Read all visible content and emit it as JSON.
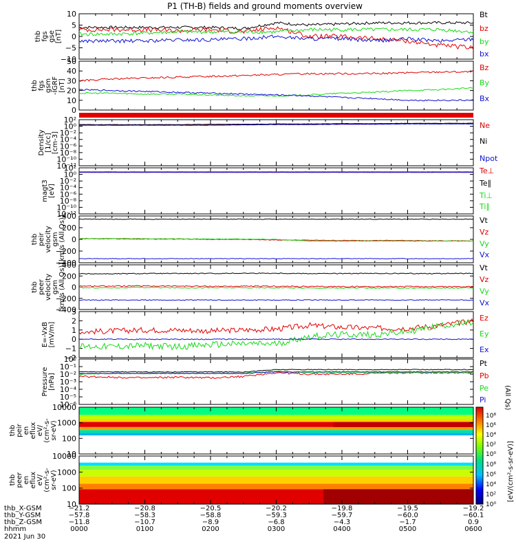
{
  "title": "P1 (TH-B) fields and ground moments overview",
  "colors": {
    "black": "#000000",
    "red": "#e00000",
    "green": "#18d818",
    "blue": "#1010d0"
  },
  "chart_data": {
    "type": "line",
    "x_ticks": [
      "0000",
      "0100",
      "0200",
      "0300",
      "0400",
      "0500",
      "0600"
    ],
    "panels": [
      {
        "id": "fgs",
        "ylabel": [
          "thb",
          "fgs",
          "gse",
          "[nT]"
        ],
        "yticks": [
          "10",
          "5",
          "0",
          "−5",
          "−10"
        ],
        "ylim": [
          -10,
          10
        ],
        "legend": [
          {
            "label": "Bt",
            "color": "black"
          },
          {
            "label": "bz",
            "color": "red"
          },
          {
            "label": "by",
            "color": "green"
          },
          {
            "label": "bx",
            "color": "blue"
          }
        ],
        "series": [
          {
            "name": "Bt",
            "color": "black",
            "values": [
              4,
              4,
              4,
              4,
              4,
              3.5,
              6,
              5,
              5.5,
              6,
              6,
              6,
              6
            ],
            "noise": 0.6
          },
          {
            "name": "bz",
            "color": "red",
            "values": [
              3,
              3,
              3,
              2.5,
              3,
              2,
              4,
              0,
              0,
              -1,
              -2,
              -4,
              -5
            ],
            "noise": 1.0
          },
          {
            "name": "by",
            "color": "green",
            "values": [
              1,
              1,
              1.5,
              2,
              2,
              2,
              2,
              3,
              3,
              3,
              3,
              3,
              2
            ],
            "noise": 0.8
          },
          {
            "name": "bx",
            "color": "blue",
            "values": [
              -2,
              -2,
              -2,
              -1.5,
              -1.5,
              -1,
              0,
              -1,
              -1,
              -2,
              -1,
              -2,
              -1
            ],
            "noise": 0.8
          }
        ]
      },
      {
        "id": "fgm",
        "ylabel": [
          "thb",
          "fgs",
          "gsm",
          "-IGRF",
          "[nT]"
        ],
        "yticks": [
          "50",
          "40",
          "30",
          "20",
          "10",
          "0"
        ],
        "ylim": [
          -5,
          50
        ],
        "legend": [
          {
            "label": "Bz",
            "color": "red"
          },
          {
            "label": "By",
            "color": "green"
          },
          {
            "label": "Bx",
            "color": "blue"
          }
        ],
        "series": [
          {
            "name": "Bz",
            "color": "red",
            "values": [
              28,
              30,
              31,
              32,
              33,
              34,
              35,
              36,
              36,
              36,
              37,
              38,
              38
            ],
            "noise": 1.0
          },
          {
            "name": "By",
            "color": "green",
            "values": [
              14,
              14,
              13,
              13,
              12,
              11,
              11,
              12,
              14,
              15,
              17,
              18,
              20
            ],
            "noise": 0.8
          },
          {
            "name": "Bx",
            "color": "blue",
            "values": [
              18,
              17,
              16,
              15,
              14,
              13,
              12,
              11,
              9,
              8,
              6,
              6,
              6
            ],
            "noise": 0.8
          }
        ]
      },
      {
        "id": "density",
        "ylabel": [
          "Density",
          "[1/cc]",
          "[cm-3]"
        ],
        "yticks": [
          "10²",
          "10⁰",
          "10⁻²",
          "10⁻⁴",
          "10⁻⁶",
          "10⁻⁸",
          "10⁻¹⁰",
          "10⁻¹²"
        ],
        "ylim": [
          -12,
          2
        ],
        "log": true,
        "legend": [
          {
            "label": "Ne",
            "color": "red"
          },
          {
            "label": "Ni",
            "color": "black"
          },
          {
            "label": "Npot",
            "color": "blue"
          }
        ],
        "series": [
          {
            "name": "Ne",
            "color": "red",
            "values": [
              0.4,
              0.4,
              0.4,
              0.4,
              0.4,
              0.5,
              0.6,
              0.6,
              0.7,
              0.7,
              0.8,
              0.8,
              0.8
            ],
            "noise": 0.05
          },
          {
            "name": "Ni",
            "color": "black",
            "values": [
              0.5,
              0.5,
              0.5,
              0.5,
              0.6,
              0.6,
              0.7,
              0.7,
              0.8,
              0.8,
              0.9,
              0.9,
              0.9
            ],
            "noise": 0.05
          },
          {
            "name": "Npot",
            "color": "blue",
            "values": [
              0.3,
              0.3,
              0.3,
              0.3,
              0.3,
              0.4,
              0.5,
              0.5,
              0.6,
              0.6,
              0.7,
              0.7,
              0.7
            ],
            "noise": 0.05
          }
        ]
      },
      {
        "id": "temp",
        "ylabel": [
          "magt3",
          "[eV]"
        ],
        "yticks": [
          "10²",
          "10⁰",
          "10⁻²",
          "10⁻⁴",
          "10⁻⁶",
          "10⁻⁸",
          "10⁻¹⁰",
          "10⁻¹²"
        ],
        "ylim": [
          -12,
          2
        ],
        "log": true,
        "legend": [
          {
            "label": "Te⊥",
            "color": "red"
          },
          {
            "label": "Te∥",
            "color": "black"
          },
          {
            "label": "Ti⊥",
            "color": "green"
          },
          {
            "label": "Ti∥",
            "color": "green"
          }
        ],
        "series": [
          {
            "name": "Te⊥",
            "color": "red",
            "values": [
              0.8,
              0.8,
              0.8,
              0.8,
              0.8,
              0.8,
              0.8,
              0.8,
              0.8,
              0.8,
              0.8,
              0.8,
              0.8
            ],
            "noise": 0.03
          },
          {
            "name": "Ti⊥",
            "color": "blue",
            "values": [
              0.6,
              0.6,
              0.6,
              0.6,
              0.6,
              0.6,
              0.6,
              0.6,
              0.6,
              0.6,
              0.6,
              0.6,
              0.6
            ],
            "noise": 0.03
          }
        ]
      },
      {
        "id": "vpeir",
        "ylabel": [
          "thb",
          "peir",
          "velocity",
          "gsm",
          "[km/s (All Qs)]"
        ],
        "yticks": [
          "400",
          "200",
          "0",
          "−200",
          "−400"
        ],
        "ylim": [
          -400,
          400
        ],
        "legend": [
          {
            "label": "Vt",
            "color": "black"
          },
          {
            "label": "Vz",
            "color": "red"
          },
          {
            "label": "Vy",
            "color": "green"
          },
          {
            "label": "Vx",
            "color": "blue"
          }
        ],
        "series": [
          {
            "name": "Vt",
            "color": "black",
            "values": [
              345,
              345,
              345,
              345,
              345,
              345,
              345,
              345,
              345,
              345,
              345,
              345,
              345
            ],
            "noise": 5
          },
          {
            "name": "Vz",
            "color": "red",
            "values": [
              10,
              10,
              5,
              5,
              0,
              0,
              -10,
              -15,
              -20,
              -20,
              -20,
              -25,
              -25
            ],
            "noise": 5
          },
          {
            "name": "Vy",
            "color": "green",
            "values": [
              15,
              15,
              10,
              10,
              5,
              5,
              0,
              -30,
              -30,
              -30,
              -30,
              -30,
              -30
            ],
            "noise": 5
          },
          {
            "name": "Vx",
            "color": "blue",
            "values": [
              -330,
              -330,
              -330,
              -330,
              -330,
              -330,
              -330,
              -330,
              -330,
              -330,
              -330,
              -330,
              -330
            ],
            "noise": 5
          }
        ]
      },
      {
        "id": "vpeer",
        "ylabel": [
          "thb",
          "peer",
          "velocity",
          "gsm",
          "[km/s (All Qs)]"
        ],
        "yticks": [
          "400",
          "200",
          "0",
          "−200",
          "−400"
        ],
        "ylim": [
          -400,
          400
        ],
        "legend": [
          {
            "label": "Vt",
            "color": "black"
          },
          {
            "label": "Vz",
            "color": "red"
          },
          {
            "label": "Vy",
            "color": "green"
          },
          {
            "label": "Vx",
            "color": "blue"
          }
        ],
        "series": [
          {
            "name": "Vt",
            "color": "black",
            "values": [
              240,
              240,
              245,
              245,
              245,
              250,
              250,
              245,
              245,
              245,
              245,
              245,
              245
            ],
            "noise": 8
          },
          {
            "name": "Vz",
            "color": "red",
            "values": [
              20,
              20,
              20,
              20,
              15,
              15,
              15,
              10,
              10,
              10,
              10,
              10,
              10
            ],
            "noise": 10
          },
          {
            "name": "Vy",
            "color": "green",
            "values": [
              -10,
              -10,
              -5,
              -10,
              -10,
              -10,
              -10,
              -15,
              -15,
              -15,
              -15,
              -15,
              -15
            ],
            "noise": 10
          },
          {
            "name": "Vx",
            "color": "blue",
            "values": [
              -230,
              -230,
              -230,
              -230,
              -230,
              -230,
              -230,
              -230,
              -230,
              -230,
              -230,
              -230,
              -230
            ],
            "noise": 8
          }
        ]
      },
      {
        "id": "efield",
        "ylabel": [
          "E=-VxB",
          "[mV/m]"
        ],
        "yticks": [
          "3",
          "2",
          "1",
          "0",
          "−1",
          "−2"
        ],
        "ylim": [
          -2,
          3
        ],
        "legend": [
          {
            "label": "Ez",
            "color": "red"
          },
          {
            "label": "Ey",
            "color": "green"
          },
          {
            "label": "Ex",
            "color": "blue"
          }
        ],
        "series": [
          {
            "name": "Ez",
            "color": "red",
            "values": [
              0.8,
              0.9,
              1.0,
              1.0,
              0.9,
              1.0,
              1.1,
              1.5,
              1.3,
              1.2,
              1.2,
              1.5,
              2.0
            ],
            "noise": 0.3
          },
          {
            "name": "Ey",
            "color": "green",
            "values": [
              -0.8,
              -0.8,
              -0.7,
              -0.8,
              -0.6,
              -0.5,
              -0.5,
              0.3,
              0.5,
              0.5,
              0.8,
              1.5,
              1.8
            ],
            "noise": 0.35
          },
          {
            "name": "Ex",
            "color": "blue",
            "values": [
              0,
              0,
              0,
              0,
              0,
              0,
              0,
              0,
              0,
              0,
              0,
              0,
              0
            ],
            "noise": 0.05
          }
        ]
      },
      {
        "id": "pressure",
        "ylabel": [
          "Pressure",
          "[nPa]"
        ],
        "yticks": [
          "10⁰",
          "10⁻¹",
          "10⁻²",
          "10⁻³",
          "10⁻⁴",
          "10⁻⁵",
          "10⁻⁶"
        ],
        "ylim": [
          -6,
          0
        ],
        "log": true,
        "legend": [
          {
            "label": "Pt",
            "color": "black"
          },
          {
            "label": "Pb",
            "color": "red"
          },
          {
            "label": "Pe",
            "color": "green"
          },
          {
            "label": "Pi",
            "color": "blue"
          }
        ],
        "legend_note": "(All Qs)",
        "series": [
          {
            "name": "Pt",
            "color": "black",
            "values": [
              -1.7,
              -1.7,
              -1.7,
              -1.7,
              -1.7,
              -1.7,
              -1.4,
              -1.4,
              -1.4,
              -1.4,
              -1.4,
              -1.4,
              -1.4
            ],
            "noise": 0.05
          },
          {
            "name": "Pb",
            "color": "red",
            "values": [
              -2.3,
              -2.4,
              -2.5,
              -2.4,
              -2.5,
              -2.3,
              -1.8,
              -2.0,
              -2.0,
              -1.9,
              -1.8,
              -1.8,
              -1.8
            ],
            "noise": 0.12
          },
          {
            "name": "Pe",
            "color": "green",
            "values": [
              -2.0,
              -1.9,
              -1.9,
              -1.9,
              -1.9,
              -1.9,
              -1.6,
              -1.8,
              -1.8,
              -1.8,
              -1.8,
              -1.8,
              -1.8
            ],
            "noise": 0.05
          },
          {
            "name": "Pi",
            "color": "blue",
            "values": [
              -1.9,
              -1.9,
              -1.9,
              -1.9,
              -1.9,
              -1.9,
              -1.7,
              -1.7,
              -1.7,
              -1.7,
              -1.7,
              -1.7,
              -1.7
            ],
            "noise": 0.05
          }
        ]
      },
      {
        "id": "peir_spec",
        "type": "heatmap",
        "ylabel": [
          "thb",
          "peir",
          "en",
          "eflux",
          "eV/",
          "(cm²-s-",
          "sr-eV)"
        ],
        "yticks": [
          "10000",
          "1000",
          "100",
          "10"
        ],
        "ylim": [
          5,
          15000
        ],
        "log": true
      },
      {
        "id": "peer_spec",
        "type": "heatmap",
        "ylabel": [
          "thb",
          "peer",
          "en",
          "eflux",
          "eV/",
          "(cm²-s-",
          "sr-eV)"
        ],
        "yticks": [
          "10000",
          "1000",
          "100",
          "10"
        ],
        "ylim": [
          5,
          15000
        ],
        "log": true
      }
    ],
    "colorbar": {
      "label": "[eV/(cm²-s-sr-eV)]",
      "ticks": [
        "10⁸",
        "10⁶",
        "10⁴",
        "10²",
        "10⁰"
      ]
    },
    "orbit": {
      "rows": [
        {
          "label": "thb_X-GSM",
          "values": [
            "−21.2",
            "−20.8",
            "−20.5",
            "−20.2",
            "−19.8",
            "−19.5",
            "−19.2"
          ]
        },
        {
          "label": "thb_Y-GSM",
          "values": [
            "−57.8",
            "−58.3",
            "−58.8",
            "−59.3",
            "−59.7",
            "−60.0",
            "−60.1"
          ]
        },
        {
          "label": "thb_Z-GSM",
          "values": [
            "−11.8",
            "−10.7",
            "−8.9",
            "−6.8",
            "−4.3",
            "−1.7",
            "0.9"
          ]
        },
        {
          "label": "hhmm",
          "values": [
            "0000",
            "0100",
            "0200",
            "0300",
            "0400",
            "0500",
            "0600"
          ]
        }
      ],
      "date": "2021 Jun 30"
    }
  }
}
